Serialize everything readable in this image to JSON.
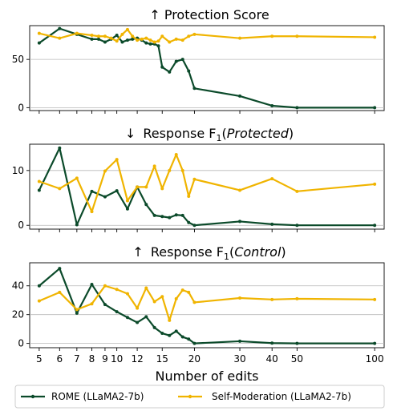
{
  "chart_data": {
    "type": "line",
    "x_scale": "log",
    "xlabel": "Number of edits",
    "xticks": [
      5,
      6,
      7,
      8,
      9,
      10,
      12,
      15,
      20,
      30,
      40,
      50,
      100
    ],
    "xtick_labels": [
      "5",
      "6",
      "7",
      "8",
      "9",
      "10",
      "12",
      "15",
      "20",
      "30",
      "40",
      "50",
      "100"
    ],
    "legend": {
      "placement": "bottom-center",
      "entries": [
        "ROME (LLaMA2-7b)",
        "Self-Moderation (LLaMA2-7b)"
      ]
    },
    "colors": {
      "ROME (LLaMA2-7b)": "#0b4a2a",
      "Self-Moderation (LLaMA2-7b)": "#f0b400"
    },
    "grid": "horizontal",
    "panels": [
      {
        "title": "↑ Protection Score",
        "title_arrow": "↑",
        "title_main": "Protection Score",
        "ylim": [
          -3,
          85
        ],
        "yticks": [
          0,
          50
        ],
        "series": [
          {
            "name": "ROME (LLaMA2-7b)",
            "x": [
              5,
              6,
              7,
              8,
              8.5,
              9,
              9.5,
              10,
              10.5,
              11,
              11.5,
              12,
              12.5,
              13,
              13.5,
              14,
              14.5,
              15,
              16,
              17,
              18,
              19,
              20,
              30,
              40,
              50,
              100
            ],
            "y": [
              67,
              82,
              76,
              71,
              71,
              68,
              71,
              75,
              68,
              70,
              71,
              72,
              70,
              67,
              66,
              66,
              64,
              42,
              37,
              48,
              50,
              38,
              20,
              12,
              2,
              0,
              0
            ]
          },
          {
            "name": "Self-Moderation (LLaMA2-7b)",
            "x": [
              5,
              6,
              7,
              8,
              8.5,
              9,
              9.5,
              10,
              10.5,
              11,
              11.5,
              12,
              12.5,
              13,
              13.5,
              14,
              14.5,
              15,
              16,
              17,
              18,
              19,
              20,
              30,
              40,
              50,
              100
            ],
            "y": [
              77,
              72,
              77,
              75,
              74,
              74,
              72,
              69,
              76,
              81,
              74,
              70,
              71,
              72,
              70,
              68,
              69,
              74,
              68,
              71,
              70,
              74,
              76,
              72,
              74,
              74,
              73
            ]
          }
        ]
      },
      {
        "title": "↓ Response F1(Protected)",
        "title_arrow": "↓",
        "title_main": "Response F",
        "title_sub": "1",
        "title_paren": "Protected",
        "ylim": [
          -0.7,
          14.8
        ],
        "yticks": [
          0,
          10
        ],
        "series": [
          {
            "name": "ROME (LLaMA2-7b)",
            "x": [
              5,
              6,
              7,
              8,
              9,
              10,
              11,
              12,
              13,
              14,
              15,
              16,
              17,
              18,
              19,
              20,
              30,
              40,
              50,
              100
            ],
            "y": [
              6.4,
              14.1,
              0.1,
              6.2,
              5.2,
              6.3,
              3.0,
              7.0,
              3.8,
              1.8,
              1.6,
              1.4,
              1.9,
              1.8,
              0.5,
              0.0,
              0.7,
              0.2,
              0.0,
              0.0
            ]
          },
          {
            "name": "Self-Moderation (LLaMA2-7b)",
            "x": [
              5,
              6,
              7,
              8,
              9,
              10,
              11,
              12,
              13,
              14,
              15,
              16,
              17,
              18,
              19,
              20,
              30,
              40,
              50,
              100
            ],
            "y": [
              8.0,
              6.7,
              8.6,
              2.5,
              9.9,
              12.0,
              4.5,
              7.0,
              7.0,
              10.8,
              6.7,
              10.0,
              12.9,
              10.0,
              5.3,
              8.4,
              6.4,
              8.5,
              6.2,
              7.5
            ]
          }
        ]
      },
      {
        "title": "↑ Response F1(Control)",
        "title_arrow": "↑",
        "title_main": "Response F",
        "title_sub": "1",
        "title_paren": "Control",
        "ylim": [
          -3,
          56
        ],
        "yticks": [
          0,
          20,
          40
        ],
        "series": [
          {
            "name": "ROME (LLaMA2-7b)",
            "x": [
              5,
              6,
              7,
              8,
              9,
              10,
              11,
              12,
              13,
              14,
              15,
              16,
              17,
              18,
              19,
              20,
              30,
              40,
              50,
              100
            ],
            "y": [
              40,
              52,
              21,
              41,
              27,
              22,
              18,
              14.5,
              18.5,
              11,
              7,
              5.5,
              8.5,
              4.5,
              3,
              0,
              1.5,
              0.2,
              0,
              0
            ]
          },
          {
            "name": "Self-Moderation (LLaMA2-7b)",
            "x": [
              5,
              6,
              7,
              8,
              9,
              10,
              11,
              12,
              13,
              14,
              15,
              16,
              17,
              18,
              19,
              20,
              30,
              40,
              50,
              100
            ],
            "y": [
              29.5,
              35.5,
              23.5,
              27.5,
              40,
              37.5,
              34.5,
              24.5,
              38.5,
              29,
              32.5,
              16,
              31,
              37,
              35.5,
              28.5,
              31.5,
              30.5,
              31,
              30.5
            ]
          }
        ]
      }
    ]
  }
}
